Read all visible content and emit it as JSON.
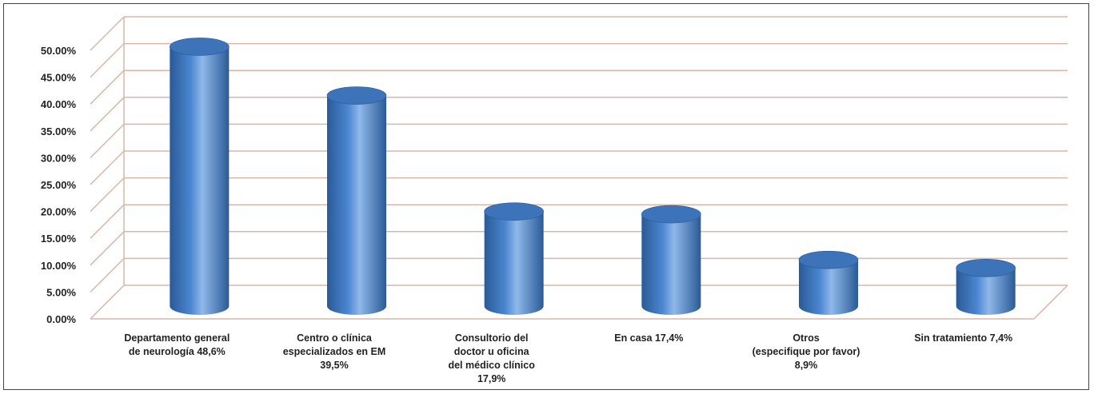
{
  "chart_data": {
    "type": "bar",
    "style": "3d-cylinder",
    "categories": [
      [
        "Departamento general",
        "de neurología 48,6%"
      ],
      [
        "Centro o clínica",
        "especializados en EM",
        "39,5%"
      ],
      [
        "Consultorio del",
        "doctor u oficina",
        "del médico clínico",
        "17,9%"
      ],
      [
        "En casa 17,4%"
      ],
      [
        "Otros",
        "(especifique por favor)",
        "8,9%"
      ],
      [
        "Sin tratamiento 7,4%"
      ]
    ],
    "values": [
      48.6,
      39.5,
      17.9,
      17.4,
      8.9,
      7.4
    ],
    "yticks": [
      "0.00%",
      "5.00%",
      "10.00%",
      "15.00%",
      "20.00%",
      "25.00%",
      "30.00%",
      "35.00%",
      "40.00%",
      "45.00%",
      "50.00%"
    ],
    "ylim": [
      0,
      50
    ],
    "title": "",
    "xlabel": "",
    "ylabel": "",
    "grid": true,
    "colors": {
      "bar_dark": "#2a5a96",
      "bar_mid": "#4a86d0",
      "bar_light": "#8fb8ea",
      "bar_top": "#3d73b8",
      "grid": "#d8b7a8",
      "axis_text": "#222222"
    }
  }
}
